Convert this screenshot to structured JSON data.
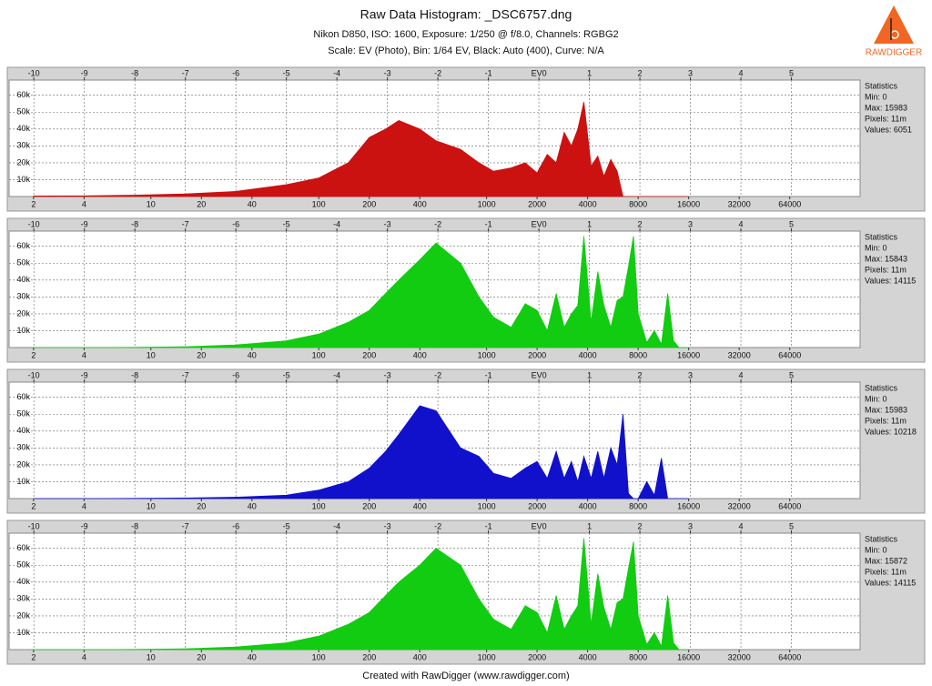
{
  "header": {
    "title": "Raw Data Histogram: _DSC6757.dng",
    "subtitle": [
      "Nikon D850, ISO: 1600, Exposure: 1/250 @ f/8.0, Channels: RGBG2",
      "Scale: EV (Photo), Bin: 1/64 EV, Black: Auto (400), Curve: N/A"
    ],
    "logo": "RAWDIGGER"
  },
  "footer": "Created with RawDigger (www.rawdigger.com)",
  "chart_data": [
    {
      "type": "area",
      "color": "#cc1111",
      "xscale": "log",
      "grid": true,
      "x": [
        2,
        4,
        8,
        16,
        32,
        64,
        100,
        150,
        200,
        250,
        300,
        400,
        500,
        700,
        900,
        1100,
        1400,
        1700,
        2000,
        2300,
        2600,
        2900,
        3200,
        3500,
        3800,
        4200,
        4600,
        5000,
        5500,
        6000,
        6500,
        7000,
        7500,
        8000,
        9000,
        10000,
        11000,
        12000,
        13000,
        14000,
        15000,
        16000
      ],
      "values": [
        300,
        400,
        800,
        1500,
        3000,
        7000,
        11000,
        20000,
        35000,
        40000,
        45000,
        40000,
        33000,
        28000,
        20000,
        15000,
        17000,
        20000,
        14000,
        25000,
        20000,
        38000,
        30000,
        40000,
        56000,
        18000,
        24000,
        12000,
        22000,
        15000,
        0,
        0,
        0,
        0,
        0,
        0,
        0,
        0,
        0,
        0,
        0,
        0
      ],
      "xlim": [
        1.43,
        168000
      ],
      "xticks": [
        2,
        4,
        10,
        20,
        40,
        100,
        200,
        400,
        1000,
        2000,
        4000,
        8000,
        16000,
        32000,
        64000
      ],
      "x2lim": [
        -10.49,
        6.36
      ],
      "x2ticks": [
        -10,
        -9,
        -8,
        -7,
        -6,
        -5,
        -4,
        -3,
        -2,
        -1,
        {
          "value": 0,
          "label": "EV0"
        },
        1,
        2,
        3,
        4,
        5
      ],
      "ylim": [
        0,
        69000
      ],
      "yticks": [
        {
          "value": 10000,
          "label": "10k"
        },
        {
          "value": 20000,
          "label": "20k"
        },
        {
          "value": 30000,
          "label": "30k"
        },
        {
          "value": 40000,
          "label": "40k"
        },
        {
          "value": 50000,
          "label": "50k"
        },
        {
          "value": 60000,
          "label": "60k"
        }
      ],
      "stats": [
        "Statistics",
        "Min: 0",
        "Max: 15983",
        "Pixels: 11m",
        "Values: 6051"
      ]
    },
    {
      "type": "area",
      "color": "#11cc11",
      "xscale": "log",
      "grid": true,
      "x": [
        2,
        4,
        8,
        16,
        32,
        64,
        100,
        150,
        200,
        250,
        300,
        400,
        500,
        700,
        900,
        1100,
        1400,
        1700,
        2000,
        2300,
        2600,
        2900,
        3200,
        3500,
        3800,
        4200,
        4600,
        5000,
        5500,
        6000,
        6500,
        7000,
        7500,
        8000,
        9000,
        10000,
        11000,
        12000,
        13000,
        14000,
        15000,
        16000
      ],
      "values": [
        0,
        0,
        100,
        500,
        1500,
        4000,
        8000,
        15000,
        22000,
        32000,
        40000,
        52000,
        62000,
        50000,
        30000,
        18000,
        12000,
        26000,
        22000,
        10000,
        32000,
        12000,
        20000,
        25000,
        66000,
        15000,
        45000,
        25000,
        12000,
        28000,
        30000,
        48000,
        66000,
        20000,
        3000,
        10000,
        2000,
        32000,
        4000,
        0,
        0,
        0
      ],
      "xlim": [
        1.43,
        168000
      ],
      "xticks": [
        2,
        4,
        10,
        20,
        40,
        100,
        200,
        400,
        1000,
        2000,
        4000,
        8000,
        16000,
        32000,
        64000
      ],
      "x2lim": [
        -10.49,
        6.36
      ],
      "x2ticks": [
        -10,
        -9,
        -8,
        -7,
        -6,
        -5,
        -4,
        -3,
        -2,
        -1,
        {
          "value": 0,
          "label": "EV0"
        },
        1,
        2,
        3,
        4,
        5
      ],
      "ylim": [
        0,
        69000
      ],
      "yticks": [
        {
          "value": 10000,
          "label": "10k"
        },
        {
          "value": 20000,
          "label": "20k"
        },
        {
          "value": 30000,
          "label": "30k"
        },
        {
          "value": 40000,
          "label": "40k"
        },
        {
          "value": 50000,
          "label": "50k"
        },
        {
          "value": 60000,
          "label": "60k"
        }
      ],
      "stats": [
        "Statistics",
        "Min: 0",
        "Max: 15843",
        "Pixels: 11m",
        "Values: 14115"
      ]
    },
    {
      "type": "area",
      "color": "#1111cc",
      "xscale": "log",
      "grid": true,
      "x": [
        2,
        4,
        8,
        16,
        32,
        64,
        100,
        150,
        200,
        250,
        300,
        400,
        500,
        700,
        900,
        1100,
        1400,
        1700,
        2000,
        2300,
        2600,
        2900,
        3200,
        3500,
        3800,
        4200,
        4600,
        5000,
        5500,
        6000,
        6500,
        7000,
        7500,
        8000,
        9000,
        10000,
        11000,
        12000,
        13000,
        14000,
        15000,
        16000
      ],
      "values": [
        0,
        0,
        100,
        300,
        800,
        2000,
        5000,
        10000,
        18000,
        28000,
        38000,
        55000,
        52000,
        30000,
        25000,
        15000,
        12000,
        18000,
        22000,
        12000,
        28000,
        12000,
        22000,
        10000,
        25000,
        12000,
        28000,
        12000,
        30000,
        20000,
        50000,
        3000,
        0,
        0,
        10000,
        2000,
        24000,
        0,
        0,
        0,
        0,
        0
      ],
      "xlim": [
        1.43,
        168000
      ],
      "xticks": [
        2,
        4,
        10,
        20,
        40,
        100,
        200,
        400,
        1000,
        2000,
        4000,
        8000,
        16000,
        32000,
        64000
      ],
      "x2lim": [
        -10.49,
        6.36
      ],
      "x2ticks": [
        -10,
        -9,
        -8,
        -7,
        -6,
        -5,
        -4,
        -3,
        -2,
        -1,
        {
          "value": 0,
          "label": "EV0"
        },
        1,
        2,
        3,
        4,
        5
      ],
      "ylim": [
        0,
        69000
      ],
      "yticks": [
        {
          "value": 10000,
          "label": "10k"
        },
        {
          "value": 20000,
          "label": "20k"
        },
        {
          "value": 30000,
          "label": "30k"
        },
        {
          "value": 40000,
          "label": "40k"
        },
        {
          "value": 50000,
          "label": "50k"
        },
        {
          "value": 60000,
          "label": "60k"
        }
      ],
      "stats": [
        "Statistics",
        "Min: 0",
        "Max: 15983",
        "Pixels: 11m",
        "Values: 10218"
      ]
    },
    {
      "type": "area",
      "color": "#11cc11",
      "xscale": "log",
      "grid": true,
      "x": [
        2,
        4,
        8,
        16,
        32,
        64,
        100,
        150,
        200,
        250,
        300,
        400,
        500,
        700,
        900,
        1100,
        1400,
        1700,
        2000,
        2300,
        2600,
        2900,
        3200,
        3500,
        3800,
        4200,
        4600,
        5000,
        5500,
        6000,
        6500,
        7000,
        7500,
        8000,
        9000,
        10000,
        11000,
        12000,
        13000,
        14000,
        15000,
        16000
      ],
      "values": [
        0,
        0,
        100,
        500,
        1500,
        4000,
        8000,
        15000,
        22000,
        32000,
        40000,
        50000,
        60000,
        50000,
        30000,
        18000,
        12000,
        26000,
        22000,
        10000,
        32000,
        12000,
        20000,
        26000,
        66000,
        15000,
        45000,
        25000,
        12000,
        28000,
        30000,
        48000,
        64000,
        20000,
        3000,
        10000,
        2000,
        32000,
        4000,
        0,
        0,
        0
      ],
      "xlim": [
        1.43,
        168000
      ],
      "xticks": [
        2,
        4,
        10,
        20,
        40,
        100,
        200,
        400,
        1000,
        2000,
        4000,
        8000,
        16000,
        32000,
        64000
      ],
      "x2lim": [
        -10.49,
        6.36
      ],
      "x2ticks": [
        -10,
        -9,
        -8,
        -7,
        -6,
        -5,
        -4,
        -3,
        -2,
        -1,
        {
          "value": 0,
          "label": "EV0"
        },
        1,
        2,
        3,
        4,
        5
      ],
      "ylim": [
        0,
        69000
      ],
      "yticks": [
        {
          "value": 10000,
          "label": "10k"
        },
        {
          "value": 20000,
          "label": "20k"
        },
        {
          "value": 30000,
          "label": "30k"
        },
        {
          "value": 40000,
          "label": "40k"
        },
        {
          "value": 50000,
          "label": "50k"
        },
        {
          "value": 60000,
          "label": "60k"
        }
      ],
      "stats": [
        "Statistics",
        "Min: 0",
        "Max: 15872",
        "Pixels: 11m",
        "Values: 14115"
      ]
    }
  ]
}
